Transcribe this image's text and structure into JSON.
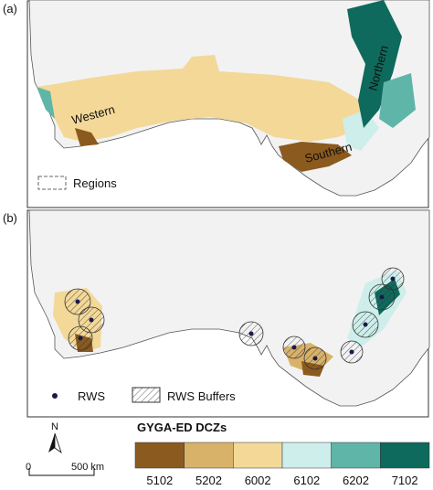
{
  "panel_a": {
    "label": "(a)",
    "regions": [
      "Western",
      "Northern",
      "Southern"
    ],
    "legend": "Regions"
  },
  "panel_b": {
    "label": "(b)",
    "legend": [
      "RWS",
      "RWS Buffers"
    ]
  },
  "north_arrow": "N",
  "scale_bar": {
    "start": "0",
    "end": "500 km"
  },
  "colorbar": {
    "title": "GYGA-ED DCZs",
    "classes": [
      {
        "label": "5102",
        "color": "#8b5a1e"
      },
      {
        "label": "5202",
        "color": "#d9b26a"
      },
      {
        "label": "6002",
        "color": "#f3d898"
      },
      {
        "label": "6102",
        "color": "#cdeeea"
      },
      {
        "label": "6202",
        "color": "#5fb5a8"
      },
      {
        "label": "7102",
        "color": "#0e6a5c"
      }
    ]
  }
}
